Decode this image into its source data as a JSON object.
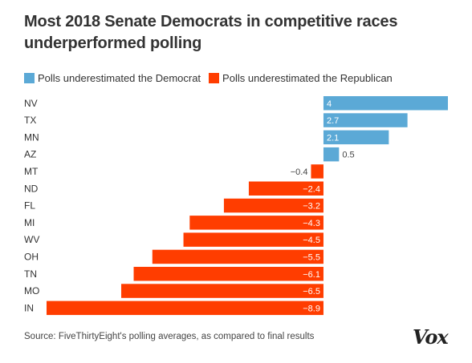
{
  "chart_data": {
    "type": "bar",
    "orientation": "horizontal",
    "title": "Most 2018 Senate Democrats in competitive races underperformed polling",
    "categories": [
      "NV",
      "TX",
      "MN",
      "AZ",
      "MT",
      "ND",
      "FL",
      "MI",
      "WV",
      "OH",
      "TN",
      "MO",
      "IN"
    ],
    "values": [
      4,
      2.7,
      2.1,
      0.5,
      -0.4,
      -2.4,
      -3.2,
      -4.3,
      -4.5,
      -5.5,
      -6.1,
      -6.5,
      -8.9
    ],
    "value_labels": [
      "4",
      "2.7",
      "2.1",
      "0.5",
      "−0.4",
      "−2.4",
      "−3.2",
      "−4.3",
      "−4.5",
      "−5.5",
      "−6.1",
      "−6.5",
      "−8.9"
    ],
    "xlim": [
      -8.9,
      4
    ],
    "grid": false,
    "legend": {
      "placement": "top",
      "entries": [
        {
          "label": "Polls underestimated the Democrat",
          "color": "#5ba9d6"
        },
        {
          "label": "Polls underestimated the Republican",
          "color": "#ff3d00"
        }
      ]
    }
  },
  "colors": {
    "positive": "#5ba9d6",
    "negative": "#ff3d00"
  },
  "footer": {
    "source": "Source: FiveThirtyEight's polling averages, as compared to final results",
    "logo": "Vox"
  }
}
